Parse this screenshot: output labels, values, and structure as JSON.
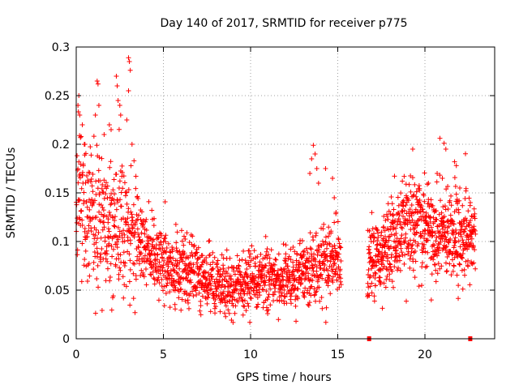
{
  "chart_data": {
    "type": "scatter",
    "title": "Day 140 of 2017, SRMTID for receiver p775",
    "xlabel": "GPS time / hours",
    "ylabel": "SRMTID / TECUs",
    "xlim": [
      0,
      24
    ],
    "ylim": [
      0,
      0.3
    ],
    "x_ticks": [
      0,
      5,
      10,
      15,
      20
    ],
    "x_tick_labels": [
      "0",
      "5",
      "10",
      "15",
      "20"
    ],
    "y_ticks": [
      0,
      0.05,
      0.1,
      0.15,
      0.2,
      0.25,
      0.3
    ],
    "y_tick_labels": [
      "0",
      "0.05",
      "0.1",
      "0.15",
      "0.2",
      "0.25",
      "0.3"
    ],
    "grid": true,
    "marker": "plus",
    "color": "#ff0000",
    "series": [
      {
        "name": "SRMTID",
        "segments": [
          {
            "x_start": 0.0,
            "x_end": 15.2,
            "n": 1500
          },
          {
            "x_start": 16.7,
            "x_end": 22.9,
            "n": 720
          }
        ],
        "profile": [
          [
            0.0,
            0.15,
            0.045
          ],
          [
            0.5,
            0.14,
            0.045
          ],
          [
            1.0,
            0.13,
            0.045
          ],
          [
            1.5,
            0.12,
            0.045
          ],
          [
            2.0,
            0.115,
            0.045
          ],
          [
            2.5,
            0.115,
            0.05
          ],
          [
            3.0,
            0.11,
            0.045
          ],
          [
            3.5,
            0.1,
            0.03
          ],
          [
            4.0,
            0.09,
            0.022
          ],
          [
            5.0,
            0.08,
            0.02
          ],
          [
            6.0,
            0.07,
            0.02
          ],
          [
            7.0,
            0.065,
            0.018
          ],
          [
            8.0,
            0.055,
            0.017
          ],
          [
            9.0,
            0.052,
            0.017
          ],
          [
            10.0,
            0.058,
            0.018
          ],
          [
            11.0,
            0.062,
            0.018
          ],
          [
            12.0,
            0.06,
            0.017
          ],
          [
            13.0,
            0.065,
            0.02
          ],
          [
            14.0,
            0.075,
            0.024
          ],
          [
            15.2,
            0.08,
            0.022
          ],
          [
            16.7,
            0.075,
            0.025
          ],
          [
            17.5,
            0.085,
            0.025
          ],
          [
            18.5,
            0.11,
            0.028
          ],
          [
            19.5,
            0.12,
            0.03
          ],
          [
            20.5,
            0.11,
            0.028
          ],
          [
            21.5,
            0.105,
            0.03
          ],
          [
            22.5,
            0.1,
            0.025
          ],
          [
            22.9,
            0.11,
            0.02
          ]
        ],
        "highlights": [
          [
            0.1,
            0.24
          ],
          [
            0.15,
            0.25
          ],
          [
            0.2,
            0.23
          ],
          [
            0.35,
            0.22
          ],
          [
            0.5,
            0.2
          ],
          [
            1.2,
            0.265
          ],
          [
            1.25,
            0.262
          ],
          [
            1.3,
            0.24
          ],
          [
            1.1,
            0.23
          ],
          [
            1.6,
            0.21
          ],
          [
            1.9,
            0.22
          ],
          [
            2.0,
            0.215
          ],
          [
            2.3,
            0.27
          ],
          [
            2.35,
            0.26
          ],
          [
            2.4,
            0.245
          ],
          [
            2.5,
            0.24
          ],
          [
            2.55,
            0.23
          ],
          [
            3.0,
            0.289
          ],
          [
            3.05,
            0.285
          ],
          [
            3.1,
            0.276
          ],
          [
            3.0,
            0.255
          ],
          [
            2.9,
            0.225
          ],
          [
            3.2,
            0.2
          ],
          [
            13.6,
            0.199
          ],
          [
            13.7,
            0.19
          ],
          [
            13.5,
            0.185
          ],
          [
            13.8,
            0.175
          ],
          [
            13.4,
            0.17
          ],
          [
            14.3,
            0.175
          ],
          [
            14.7,
            0.165
          ],
          [
            14.8,
            0.145
          ],
          [
            14.9,
            0.13
          ],
          [
            13.9,
            0.16
          ],
          [
            19.3,
            0.195
          ],
          [
            20.7,
            0.17
          ],
          [
            21.0,
            0.165
          ],
          [
            21.1,
            0.201
          ],
          [
            21.2,
            0.195
          ],
          [
            21.7,
            0.182
          ],
          [
            21.8,
            0.178
          ],
          [
            22.0,
            0.155
          ],
          [
            20.2,
            0.16
          ]
        ],
        "baseline_markers": [
          {
            "x": 16.8,
            "y": 0.0
          },
          {
            "x": 22.6,
            "y": 0.0
          }
        ]
      }
    ]
  }
}
